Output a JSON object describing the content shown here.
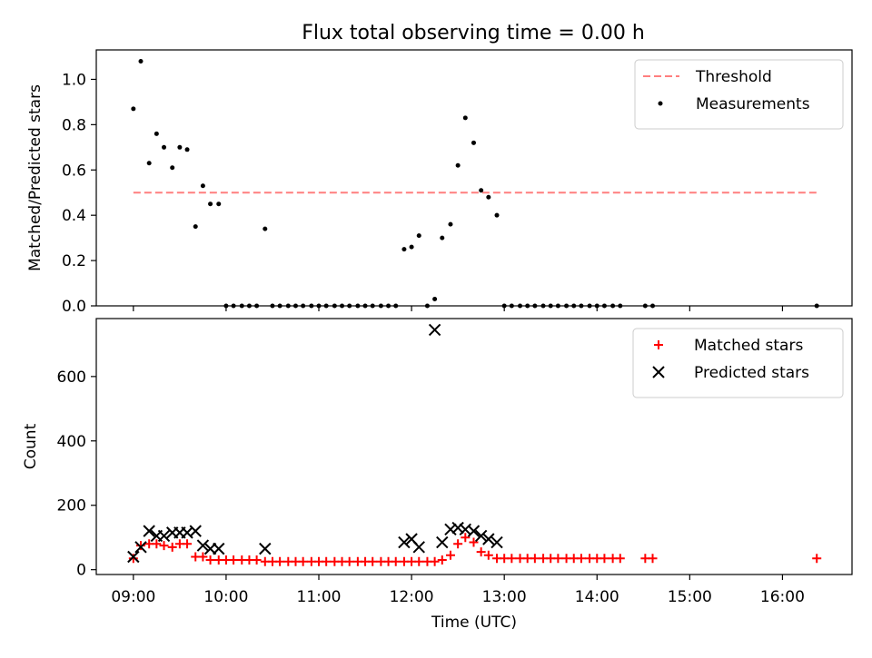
{
  "title": "Flux total observing time = 0.00 h",
  "chart_data": [
    {
      "type": "scatter",
      "panel": "top",
      "xlabel": "",
      "ylabel": "Matched/Predicted stars",
      "xlim": [
        8.6,
        16.75
      ],
      "ylim": [
        0,
        1.13
      ],
      "yticks": [
        0.0,
        0.2,
        0.4,
        0.6,
        0.8,
        1.0
      ],
      "ytick_labels": [
        "0.0",
        "0.2",
        "0.4",
        "0.6",
        "0.8",
        "1.0"
      ],
      "grid": false,
      "legend_position": "top-right",
      "threshold": {
        "name": "Threshold",
        "value": 0.5,
        "x_start": 9.0,
        "x_end": 16.37,
        "color": "#ff7f7f",
        "style": "dashed"
      },
      "series": [
        {
          "name": "Measurements",
          "color": "#000000",
          "marker": "dot",
          "points": [
            [
              9.0,
              0.87
            ],
            [
              9.08,
              1.08
            ],
            [
              9.17,
              0.63
            ],
            [
              9.25,
              0.76
            ],
            [
              9.33,
              0.7
            ],
            [
              9.42,
              0.61
            ],
            [
              9.5,
              0.7
            ],
            [
              9.58,
              0.69
            ],
            [
              9.67,
              0.35
            ],
            [
              9.75,
              0.53
            ],
            [
              9.83,
              0.45
            ],
            [
              9.92,
              0.45
            ],
            [
              10.0,
              0.0
            ],
            [
              10.08,
              0.0
            ],
            [
              10.17,
              0.0
            ],
            [
              10.25,
              0.0
            ],
            [
              10.33,
              0.0
            ],
            [
              10.42,
              0.34
            ],
            [
              10.5,
              0.0
            ],
            [
              10.58,
              0.0
            ],
            [
              10.67,
              0.0
            ],
            [
              10.75,
              0.0
            ],
            [
              10.83,
              0.0
            ],
            [
              10.92,
              0.0
            ],
            [
              11.0,
              0.0
            ],
            [
              11.08,
              0.0
            ],
            [
              11.17,
              0.0
            ],
            [
              11.25,
              0.0
            ],
            [
              11.33,
              0.0
            ],
            [
              11.42,
              0.0
            ],
            [
              11.5,
              0.0
            ],
            [
              11.58,
              0.0
            ],
            [
              11.67,
              0.0
            ],
            [
              11.75,
              0.0
            ],
            [
              11.83,
              0.0
            ],
            [
              11.92,
              0.25
            ],
            [
              12.0,
              0.26
            ],
            [
              12.08,
              0.31
            ],
            [
              12.17,
              0.0
            ],
            [
              12.25,
              0.03
            ],
            [
              12.33,
              0.3
            ],
            [
              12.42,
              0.36
            ],
            [
              12.5,
              0.62
            ],
            [
              12.58,
              0.83
            ],
            [
              12.67,
              0.72
            ],
            [
              12.75,
              0.51
            ],
            [
              12.83,
              0.48
            ],
            [
              12.92,
              0.4
            ],
            [
              13.0,
              0.0
            ],
            [
              13.08,
              0.0
            ],
            [
              13.17,
              0.0
            ],
            [
              13.25,
              0.0
            ],
            [
              13.33,
              0.0
            ],
            [
              13.42,
              0.0
            ],
            [
              13.5,
              0.0
            ],
            [
              13.58,
              0.0
            ],
            [
              13.67,
              0.0
            ],
            [
              13.75,
              0.0
            ],
            [
              13.83,
              0.0
            ],
            [
              13.92,
              0.0
            ],
            [
              14.0,
              0.0
            ],
            [
              14.08,
              0.0
            ],
            [
              14.17,
              0.0
            ],
            [
              14.25,
              0.0
            ],
            [
              14.52,
              0.0
            ],
            [
              14.6,
              0.0
            ],
            [
              16.37,
              0.0
            ]
          ]
        }
      ]
    },
    {
      "type": "scatter",
      "panel": "bottom",
      "xlabel": "Time (UTC)",
      "ylabel": "Count",
      "xlim": [
        8.6,
        16.75
      ],
      "ylim": [
        -15,
        780
      ],
      "xticks": [
        9,
        10,
        11,
        12,
        13,
        14,
        15,
        16
      ],
      "xtick_labels": [
        "09:00",
        "10:00",
        "11:00",
        "12:00",
        "13:00",
        "14:00",
        "15:00",
        "16:00"
      ],
      "yticks": [
        0,
        200,
        400,
        600
      ],
      "ytick_labels": [
        "0",
        "200",
        "400",
        "600"
      ],
      "grid": false,
      "legend_position": "top-right",
      "series": [
        {
          "name": "Matched stars",
          "color": "#ff0000",
          "marker": "plus",
          "points": [
            [
              9.0,
              35
            ],
            [
              9.08,
              75
            ],
            [
              9.17,
              80
            ],
            [
              9.25,
              80
            ],
            [
              9.33,
              75
            ],
            [
              9.42,
              70
            ],
            [
              9.5,
              80
            ],
            [
              9.58,
              80
            ],
            [
              9.67,
              40
            ],
            [
              9.75,
              40
            ],
            [
              9.83,
              30
            ],
            [
              9.92,
              30
            ],
            [
              10.0,
              30
            ],
            [
              10.08,
              30
            ],
            [
              10.17,
              30
            ],
            [
              10.25,
              30
            ],
            [
              10.33,
              30
            ],
            [
              10.42,
              25
            ],
            [
              10.5,
              25
            ],
            [
              10.58,
              25
            ],
            [
              10.67,
              25
            ],
            [
              10.75,
              25
            ],
            [
              10.83,
              25
            ],
            [
              10.92,
              25
            ],
            [
              11.0,
              25
            ],
            [
              11.08,
              25
            ],
            [
              11.17,
              25
            ],
            [
              11.25,
              25
            ],
            [
              11.33,
              25
            ],
            [
              11.42,
              25
            ],
            [
              11.5,
              25
            ],
            [
              11.58,
              25
            ],
            [
              11.67,
              25
            ],
            [
              11.75,
              25
            ],
            [
              11.83,
              25
            ],
            [
              11.92,
              25
            ],
            [
              12.0,
              25
            ],
            [
              12.08,
              25
            ],
            [
              12.17,
              25
            ],
            [
              12.25,
              25
            ],
            [
              12.33,
              30
            ],
            [
              12.42,
              45
            ],
            [
              12.5,
              80
            ],
            [
              12.58,
              100
            ],
            [
              12.67,
              85
            ],
            [
              12.75,
              55
            ],
            [
              12.83,
              45
            ],
            [
              12.92,
              35
            ],
            [
              13.0,
              35
            ],
            [
              13.08,
              35
            ],
            [
              13.17,
              35
            ],
            [
              13.25,
              35
            ],
            [
              13.33,
              35
            ],
            [
              13.42,
              35
            ],
            [
              13.5,
              35
            ],
            [
              13.58,
              35
            ],
            [
              13.67,
              35
            ],
            [
              13.75,
              35
            ],
            [
              13.83,
              35
            ],
            [
              13.92,
              35
            ],
            [
              14.0,
              35
            ],
            [
              14.08,
              35
            ],
            [
              14.17,
              35
            ],
            [
              14.25,
              35
            ],
            [
              14.52,
              35
            ],
            [
              14.6,
              35
            ],
            [
              16.37,
              35
            ]
          ]
        },
        {
          "name": "Predicted stars",
          "color": "#000000",
          "marker": "x",
          "points": [
            [
              9.0,
              40
            ],
            [
              9.08,
              70
            ],
            [
              9.17,
              120
            ],
            [
              9.25,
              105
            ],
            [
              9.33,
              105
            ],
            [
              9.42,
              115
            ],
            [
              9.5,
              115
            ],
            [
              9.58,
              115
            ],
            [
              9.67,
              120
            ],
            [
              9.75,
              75
            ],
            [
              9.83,
              65
            ],
            [
              9.92,
              65
            ],
            [
              10.42,
              65
            ],
            [
              11.92,
              85
            ],
            [
              12.0,
              95
            ],
            [
              12.08,
              70
            ],
            [
              12.25,
              745
            ],
            [
              12.33,
              85
            ],
            [
              12.42,
              125
            ],
            [
              12.5,
              130
            ],
            [
              12.58,
              125
            ],
            [
              12.67,
              120
            ],
            [
              12.75,
              105
            ],
            [
              12.83,
              95
            ],
            [
              12.92,
              85
            ]
          ]
        }
      ]
    }
  ]
}
